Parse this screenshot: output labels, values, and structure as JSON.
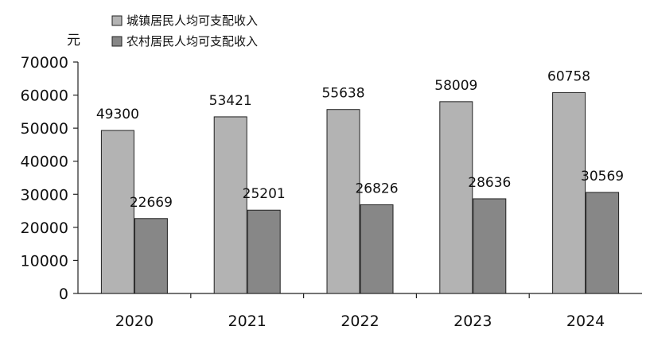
{
  "chart_data": {
    "type": "bar",
    "ylabel": "元",
    "categories": [
      "2020",
      "2021",
      "2022",
      "2023",
      "2024"
    ],
    "series": [
      {
        "name": "城镇居民人均可支配收入",
        "values": [
          49300,
          53421,
          55638,
          58009,
          60758
        ],
        "color": "#b3b3b3"
      },
      {
        "name": "农村居民人均可支配收入",
        "values": [
          22669,
          25201,
          26826,
          28636,
          30569
        ],
        "color": "#878787"
      }
    ],
    "ylim": [
      0,
      70000
    ],
    "yticks": [
      "0",
      "10000",
      "20000",
      "30000",
      "40000",
      "50000",
      "60000",
      "70000"
    ],
    "grid": false,
    "legend": "top-left"
  }
}
